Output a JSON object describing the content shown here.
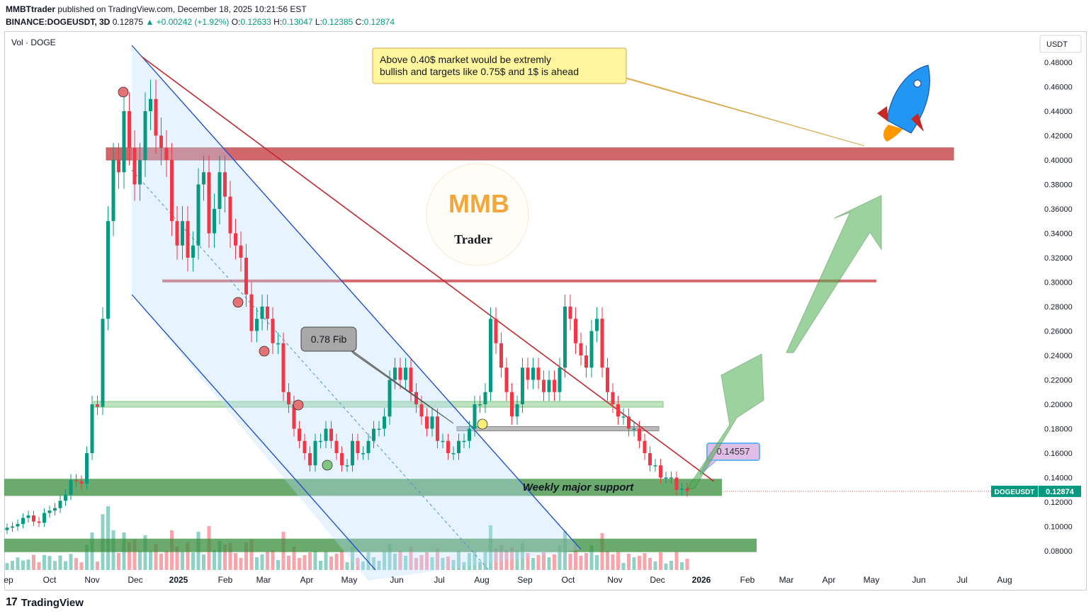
{
  "header": {
    "author": "MMBTtrader",
    "published_text": "published on TradingView.com, December 18, 2025 10:21:56 EST",
    "symbol": "BINANCE:DOGEUSDT, 3D",
    "last": "0.12875",
    "change": "+0.00242 (+1.92%)",
    "o_label": "O:",
    "o": "0.12633",
    "h_label": "H:",
    "h": "0.13047",
    "l_label": "L:",
    "l": "0.12385",
    "c_label": "C:",
    "c": "0.12874"
  },
  "footer": {
    "brand": "TradingView",
    "logo": "17"
  },
  "colors": {
    "up": "#089981",
    "down": "#f23645",
    "channel": "#1848cc",
    "trend": "#c0282d",
    "support": "#4caf50",
    "resistance": "#c0282d"
  },
  "chart_data": {
    "type": "candlestick",
    "volume_label": "Vol · DOGE",
    "currency": "USDT",
    "symbol_tag": "DOGEUSDT",
    "last_price": "0.12874",
    "y_ticks": [
      "0.08000",
      "0.10000",
      "0.12000",
      "0.14000",
      "0.16000",
      "0.18000",
      "0.20000",
      "0.22000",
      "0.24000",
      "0.26000",
      "0.28000",
      "0.30000",
      "0.32000",
      "0.34000",
      "0.36000",
      "0.38000",
      "0.40000",
      "0.42000",
      "0.44000",
      "0.46000",
      "0.48000"
    ],
    "x_ticks": [
      "ep",
      "Oct",
      "Nov",
      "Dec",
      "2025",
      "Feb",
      "Mar",
      "Apr",
      "May",
      "Jun",
      "Jul",
      "Aug",
      "Sep",
      "Oct",
      "Nov",
      "Dec",
      "2026",
      "Feb",
      "Mar",
      "Apr",
      "May",
      "Jun",
      "Jul",
      "Aug"
    ],
    "ylim": [
      0.068,
      0.498
    ],
    "candles_close": [
      0.099,
      0.1,
      0.102,
      0.107,
      0.109,
      0.104,
      0.103,
      0.111,
      0.113,
      0.115,
      0.121,
      0.126,
      0.138,
      0.137,
      0.135,
      0.16,
      0.2,
      0.198,
      0.27,
      0.35,
      0.4,
      0.39,
      0.44,
      0.41,
      0.38,
      0.4,
      0.44,
      0.45,
      0.42,
      0.41,
      0.4,
      0.35,
      0.33,
      0.35,
      0.32,
      0.33,
      0.38,
      0.39,
      0.34,
      0.36,
      0.39,
      0.37,
      0.34,
      0.33,
      0.32,
      0.29,
      0.26,
      0.27,
      0.28,
      0.27,
      0.25,
      0.25,
      0.21,
      0.2,
      0.18,
      0.17,
      0.16,
      0.15,
      0.17,
      0.17,
      0.18,
      0.17,
      0.16,
      0.15,
      0.15,
      0.17,
      0.16,
      0.16,
      0.17,
      0.18,
      0.18,
      0.19,
      0.22,
      0.23,
      0.22,
      0.23,
      0.21,
      0.2,
      0.19,
      0.18,
      0.19,
      0.17,
      0.17,
      0.16,
      0.16,
      0.17,
      0.17,
      0.18,
      0.2,
      0.2,
      0.21,
      0.27,
      0.25,
      0.23,
      0.21,
      0.19,
      0.2,
      0.23,
      0.22,
      0.23,
      0.22,
      0.21,
      0.22,
      0.21,
      0.23,
      0.28,
      0.27,
      0.25,
      0.24,
      0.23,
      0.26,
      0.27,
      0.23,
      0.21,
      0.2,
      0.19,
      0.19,
      0.18,
      0.18,
      0.17,
      0.16,
      0.15,
      0.15,
      0.14,
      0.14,
      0.14,
      0.13,
      0.131,
      0.129
    ],
    "annotations": {
      "callout_top": "Above 0.40$ market would be extremly bullish and targets like 0.75$ and 1$ is ahead",
      "fib_label": "0.78 Fib",
      "price_tag": "0.14557",
      "support_label": "Weekly major support",
      "logo_text": "MMB",
      "logo_subtext": "Trader"
    },
    "levels": {
      "resistance_zone": [
        0.4,
        0.41
      ],
      "resistance_line": 0.301,
      "green_line": 0.2,
      "gray_line": 0.18,
      "weekly_support": [
        0.125,
        0.139
      ],
      "lower_support": [
        0.079,
        0.09
      ]
    },
    "grid": false,
    "legend": "top-left"
  }
}
